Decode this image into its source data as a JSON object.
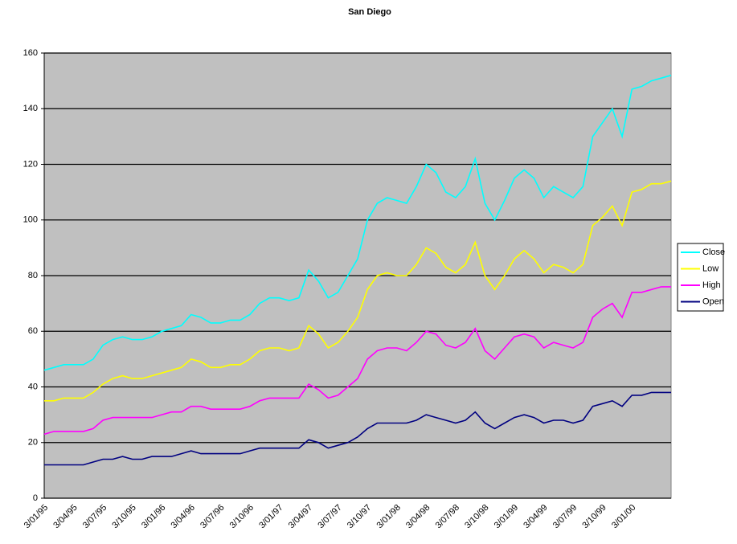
{
  "chart_data": {
    "type": "line",
    "title": "San Diego",
    "categories": [
      "3/01/95",
      null,
      null,
      "3/04/95",
      null,
      null,
      "3/07/95",
      null,
      null,
      "3/10/95",
      null,
      null,
      "3/01/96",
      null,
      null,
      "3/04/96",
      null,
      null,
      "3/07/96",
      null,
      null,
      "3/10/96",
      null,
      null,
      "3/01/97",
      null,
      null,
      "3/04/97",
      null,
      null,
      "3/07/97",
      null,
      null,
      "3/10/97",
      null,
      null,
      "3/01/98",
      null,
      null,
      "3/04/98",
      null,
      null,
      "3/07/98",
      null,
      null,
      "3/10/98",
      null,
      null,
      "3/01/99",
      null,
      null,
      "3/04/99",
      null,
      null,
      "3/07/99",
      null,
      null,
      "3/10/99",
      null,
      null,
      "3/01/00",
      null,
      null,
      null,
      null
    ],
    "series": [
      {
        "name": "Close",
        "color": "#00ffff",
        "values": [
          46,
          47,
          48,
          48,
          48,
          50,
          55,
          57,
          58,
          57,
          57,
          58,
          60,
          61,
          62,
          66,
          65,
          63,
          63,
          64,
          64,
          66,
          70,
          72,
          72,
          71,
          72,
          82,
          78,
          72,
          74,
          80,
          86,
          100,
          106,
          108,
          107,
          106,
          112,
          120,
          117,
          110,
          108,
          112,
          122,
          106,
          100,
          107,
          115,
          118,
          115,
          108,
          112,
          110,
          108,
          112,
          130,
          135,
          140,
          130,
          147,
          148,
          150,
          151,
          152
        ]
      },
      {
        "name": "Low",
        "color": "#ffff00",
        "values": [
          35,
          35,
          36,
          36,
          36,
          38,
          41,
          43,
          44,
          43,
          43,
          44,
          45,
          46,
          47,
          50,
          49,
          47,
          47,
          48,
          48,
          50,
          53,
          54,
          54,
          53,
          54,
          62,
          59,
          54,
          56,
          60,
          65,
          75,
          80,
          81,
          80,
          80,
          84,
          90,
          88,
          83,
          81,
          84,
          92,
          80,
          75,
          80,
          86,
          89,
          86,
          81,
          84,
          83,
          81,
          84,
          98,
          101,
          105,
          98,
          110,
          111,
          113,
          113,
          114
        ]
      },
      {
        "name": "High",
        "color": "#ff00ff",
        "values": [
          23,
          24,
          24,
          24,
          24,
          25,
          28,
          29,
          29,
          29,
          29,
          29,
          30,
          31,
          31,
          33,
          33,
          32,
          32,
          32,
          32,
          33,
          35,
          36,
          36,
          36,
          36,
          41,
          39,
          36,
          37,
          40,
          43,
          50,
          53,
          54,
          54,
          53,
          56,
          60,
          59,
          55,
          54,
          56,
          61,
          53,
          50,
          54,
          58,
          59,
          58,
          54,
          56,
          55,
          54,
          56,
          65,
          68,
          70,
          65,
          74,
          74,
          75,
          76,
          76
        ]
      },
      {
        "name": "Open",
        "color": "#000080",
        "values": [
          12,
          12,
          12,
          12,
          12,
          13,
          14,
          14,
          15,
          14,
          14,
          15,
          15,
          15,
          16,
          17,
          16,
          16,
          16,
          16,
          16,
          17,
          18,
          18,
          18,
          18,
          18,
          21,
          20,
          18,
          19,
          20,
          22,
          25,
          27,
          27,
          27,
          27,
          28,
          30,
          29,
          28,
          27,
          28,
          31,
          27,
          25,
          27,
          29,
          30,
          29,
          27,
          28,
          28,
          27,
          28,
          33,
          34,
          35,
          33,
          37,
          37,
          38,
          38,
          38
        ]
      }
    ],
    "ylim": [
      0,
      160
    ],
    "yticks": [
      0,
      20,
      40,
      60,
      80,
      100,
      120,
      140,
      160
    ],
    "grid": true,
    "legend": "right",
    "plot_background": "#c0c0c0"
  }
}
